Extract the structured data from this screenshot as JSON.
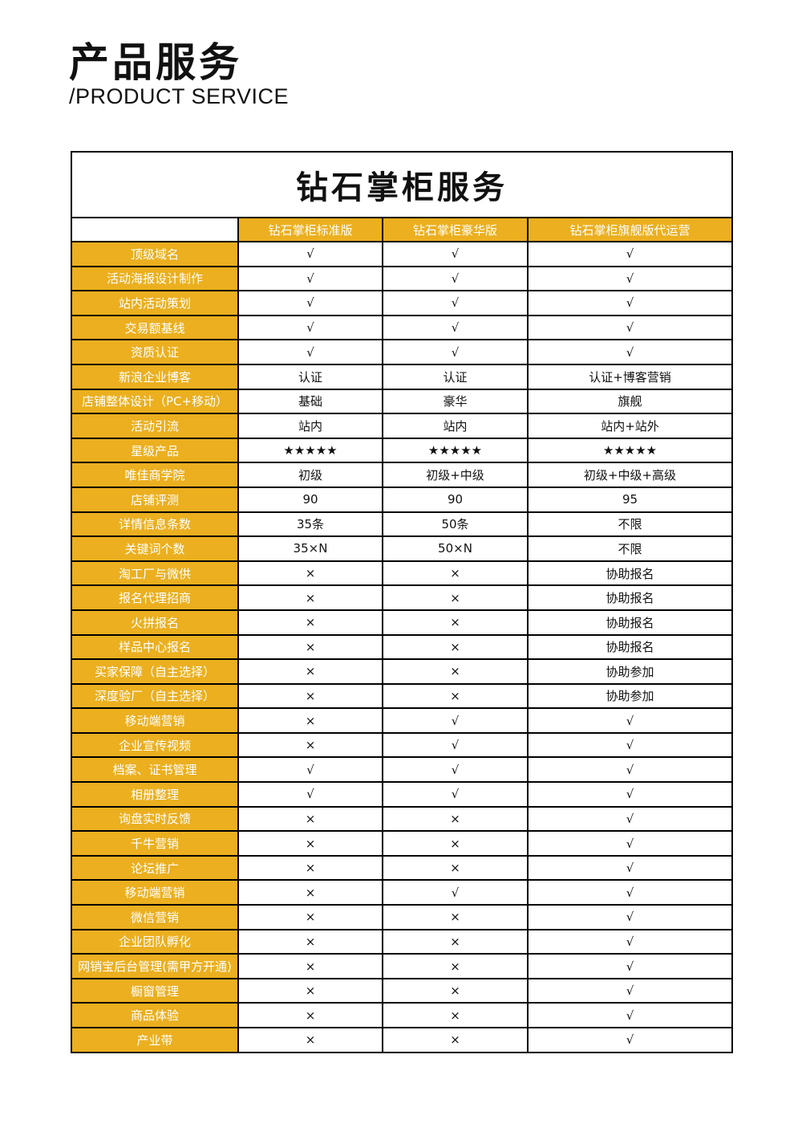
{
  "heading": {
    "title": "产品服务",
    "subtitle": "/PRODUCT SERVICE"
  },
  "table": {
    "title": "钻石掌柜服务",
    "columns": [
      "钻石掌柜标准版",
      "钻石掌柜豪华版",
      "钻石掌柜旗舰版代运营"
    ],
    "accent_color": "#ebaf1f",
    "rows": [
      {
        "feature": "顶级域名",
        "values": [
          "√",
          "√",
          "√"
        ]
      },
      {
        "feature": "活动海报设计制作",
        "values": [
          "√",
          "√",
          "√"
        ]
      },
      {
        "feature": "站内活动策划",
        "values": [
          "√",
          "√",
          "√"
        ]
      },
      {
        "feature": "交易额基线",
        "values": [
          "√",
          "√",
          "√"
        ]
      },
      {
        "feature": "资质认证",
        "values": [
          "√",
          "√",
          "√"
        ]
      },
      {
        "feature": "新浪企业博客",
        "values": [
          "认证",
          "认证",
          "认证+博客营销"
        ]
      },
      {
        "feature": "店铺整体设计（PC+移动）",
        "values": [
          "基础",
          "豪华",
          "旗舰"
        ]
      },
      {
        "feature": "活动引流",
        "values": [
          "站内",
          "站内",
          "站内+站外"
        ]
      },
      {
        "feature": "星级产品",
        "values": [
          "★★★★★",
          "★★★★★",
          "★★★★★"
        ]
      },
      {
        "feature": "唯佳商学院",
        "values": [
          "初级",
          "初级+中级",
          "初级+中级+高级"
        ]
      },
      {
        "feature": "店铺评测",
        "values": [
          "90",
          "90",
          "95"
        ]
      },
      {
        "feature": "详情信息条数",
        "values": [
          "35条",
          "50条",
          "不限"
        ]
      },
      {
        "feature": "关键词个数",
        "values": [
          "35×N",
          "50×N",
          "不限"
        ]
      },
      {
        "feature": "淘工厂与微供",
        "values": [
          "×",
          "×",
          "协助报名"
        ]
      },
      {
        "feature": "报名代理招商",
        "values": [
          "×",
          "×",
          "协助报名"
        ]
      },
      {
        "feature": "火拼报名",
        "values": [
          "×",
          "×",
          "协助报名"
        ]
      },
      {
        "feature": "样品中心报名",
        "values": [
          "×",
          "×",
          "协助报名"
        ]
      },
      {
        "feature": "买家保障（自主选择）",
        "values": [
          "×",
          "×",
          "协助参加"
        ]
      },
      {
        "feature": "深度验厂（自主选择）",
        "values": [
          "×",
          "×",
          "协助参加"
        ]
      },
      {
        "feature": "移动端营销",
        "values": [
          "×",
          "√",
          "√"
        ]
      },
      {
        "feature": "企业宣传视频",
        "values": [
          "×",
          "√",
          "√"
        ]
      },
      {
        "feature": "档案、证书管理",
        "values": [
          "√",
          "√",
          "√"
        ]
      },
      {
        "feature": "相册整理",
        "values": [
          "√",
          "√",
          "√"
        ]
      },
      {
        "feature": "询盘实时反馈",
        "values": [
          "×",
          "×",
          "√"
        ]
      },
      {
        "feature": "千牛营销",
        "values": [
          "×",
          "×",
          "√"
        ]
      },
      {
        "feature": "论坛推广",
        "values": [
          "×",
          "×",
          "√"
        ]
      },
      {
        "feature": "移动端营销",
        "values": [
          "×",
          "√",
          "√"
        ]
      },
      {
        "feature": "微信营销",
        "values": [
          "×",
          "×",
          "√"
        ]
      },
      {
        "feature": "企业团队孵化",
        "values": [
          "×",
          "×",
          "√"
        ]
      },
      {
        "feature": "网销宝后台管理(需甲方开通)",
        "values": [
          "×",
          "×",
          "√"
        ]
      },
      {
        "feature": "橱窗管理",
        "values": [
          "×",
          "×",
          "√"
        ]
      },
      {
        "feature": "商品体验",
        "values": [
          "×",
          "×",
          "√"
        ]
      },
      {
        "feature": "产业带",
        "values": [
          "×",
          "×",
          "√"
        ]
      }
    ]
  }
}
